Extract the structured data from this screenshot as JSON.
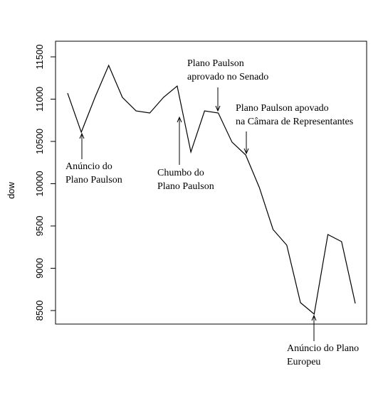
{
  "chart_data": {
    "type": "line",
    "ylabel": "dow",
    "x": [
      1,
      2,
      3,
      4,
      5,
      6,
      7,
      8,
      9,
      10,
      11,
      12,
      13,
      14,
      15,
      16,
      17,
      18,
      19,
      20,
      21,
      22
    ],
    "series": [
      {
        "color": "#000000",
        "values": [
          11071,
          10609,
          11021,
          11399,
          11021,
          10861,
          10836,
          11021,
          11155,
          10374,
          10861,
          10836,
          10492,
          10340,
          9954,
          9458,
          9273,
          8593,
          8458,
          9399,
          9315,
          8584
        ]
      }
    ],
    "xlim": [
      0.12,
      22.83
    ],
    "ylim": [
      8340,
      11685
    ],
    "yticks": [
      8500,
      9000,
      9500,
      10000,
      10500,
      11000,
      11500
    ],
    "annotations": [
      {
        "lines": [
          "Anúncio do",
          "Plano Paulson"
        ]
      },
      {
        "lines": [
          "Chumbo do",
          "Plano Paulson"
        ]
      },
      {
        "lines": [
          "Plano Paulson",
          "aprovado no Senado"
        ]
      },
      {
        "lines": [
          "Plano Paulson apovado",
          "na Câmara de Representantes"
        ]
      },
      {
        "lines": [
          "Anúncio do Plano",
          "Europeu"
        ]
      }
    ]
  }
}
